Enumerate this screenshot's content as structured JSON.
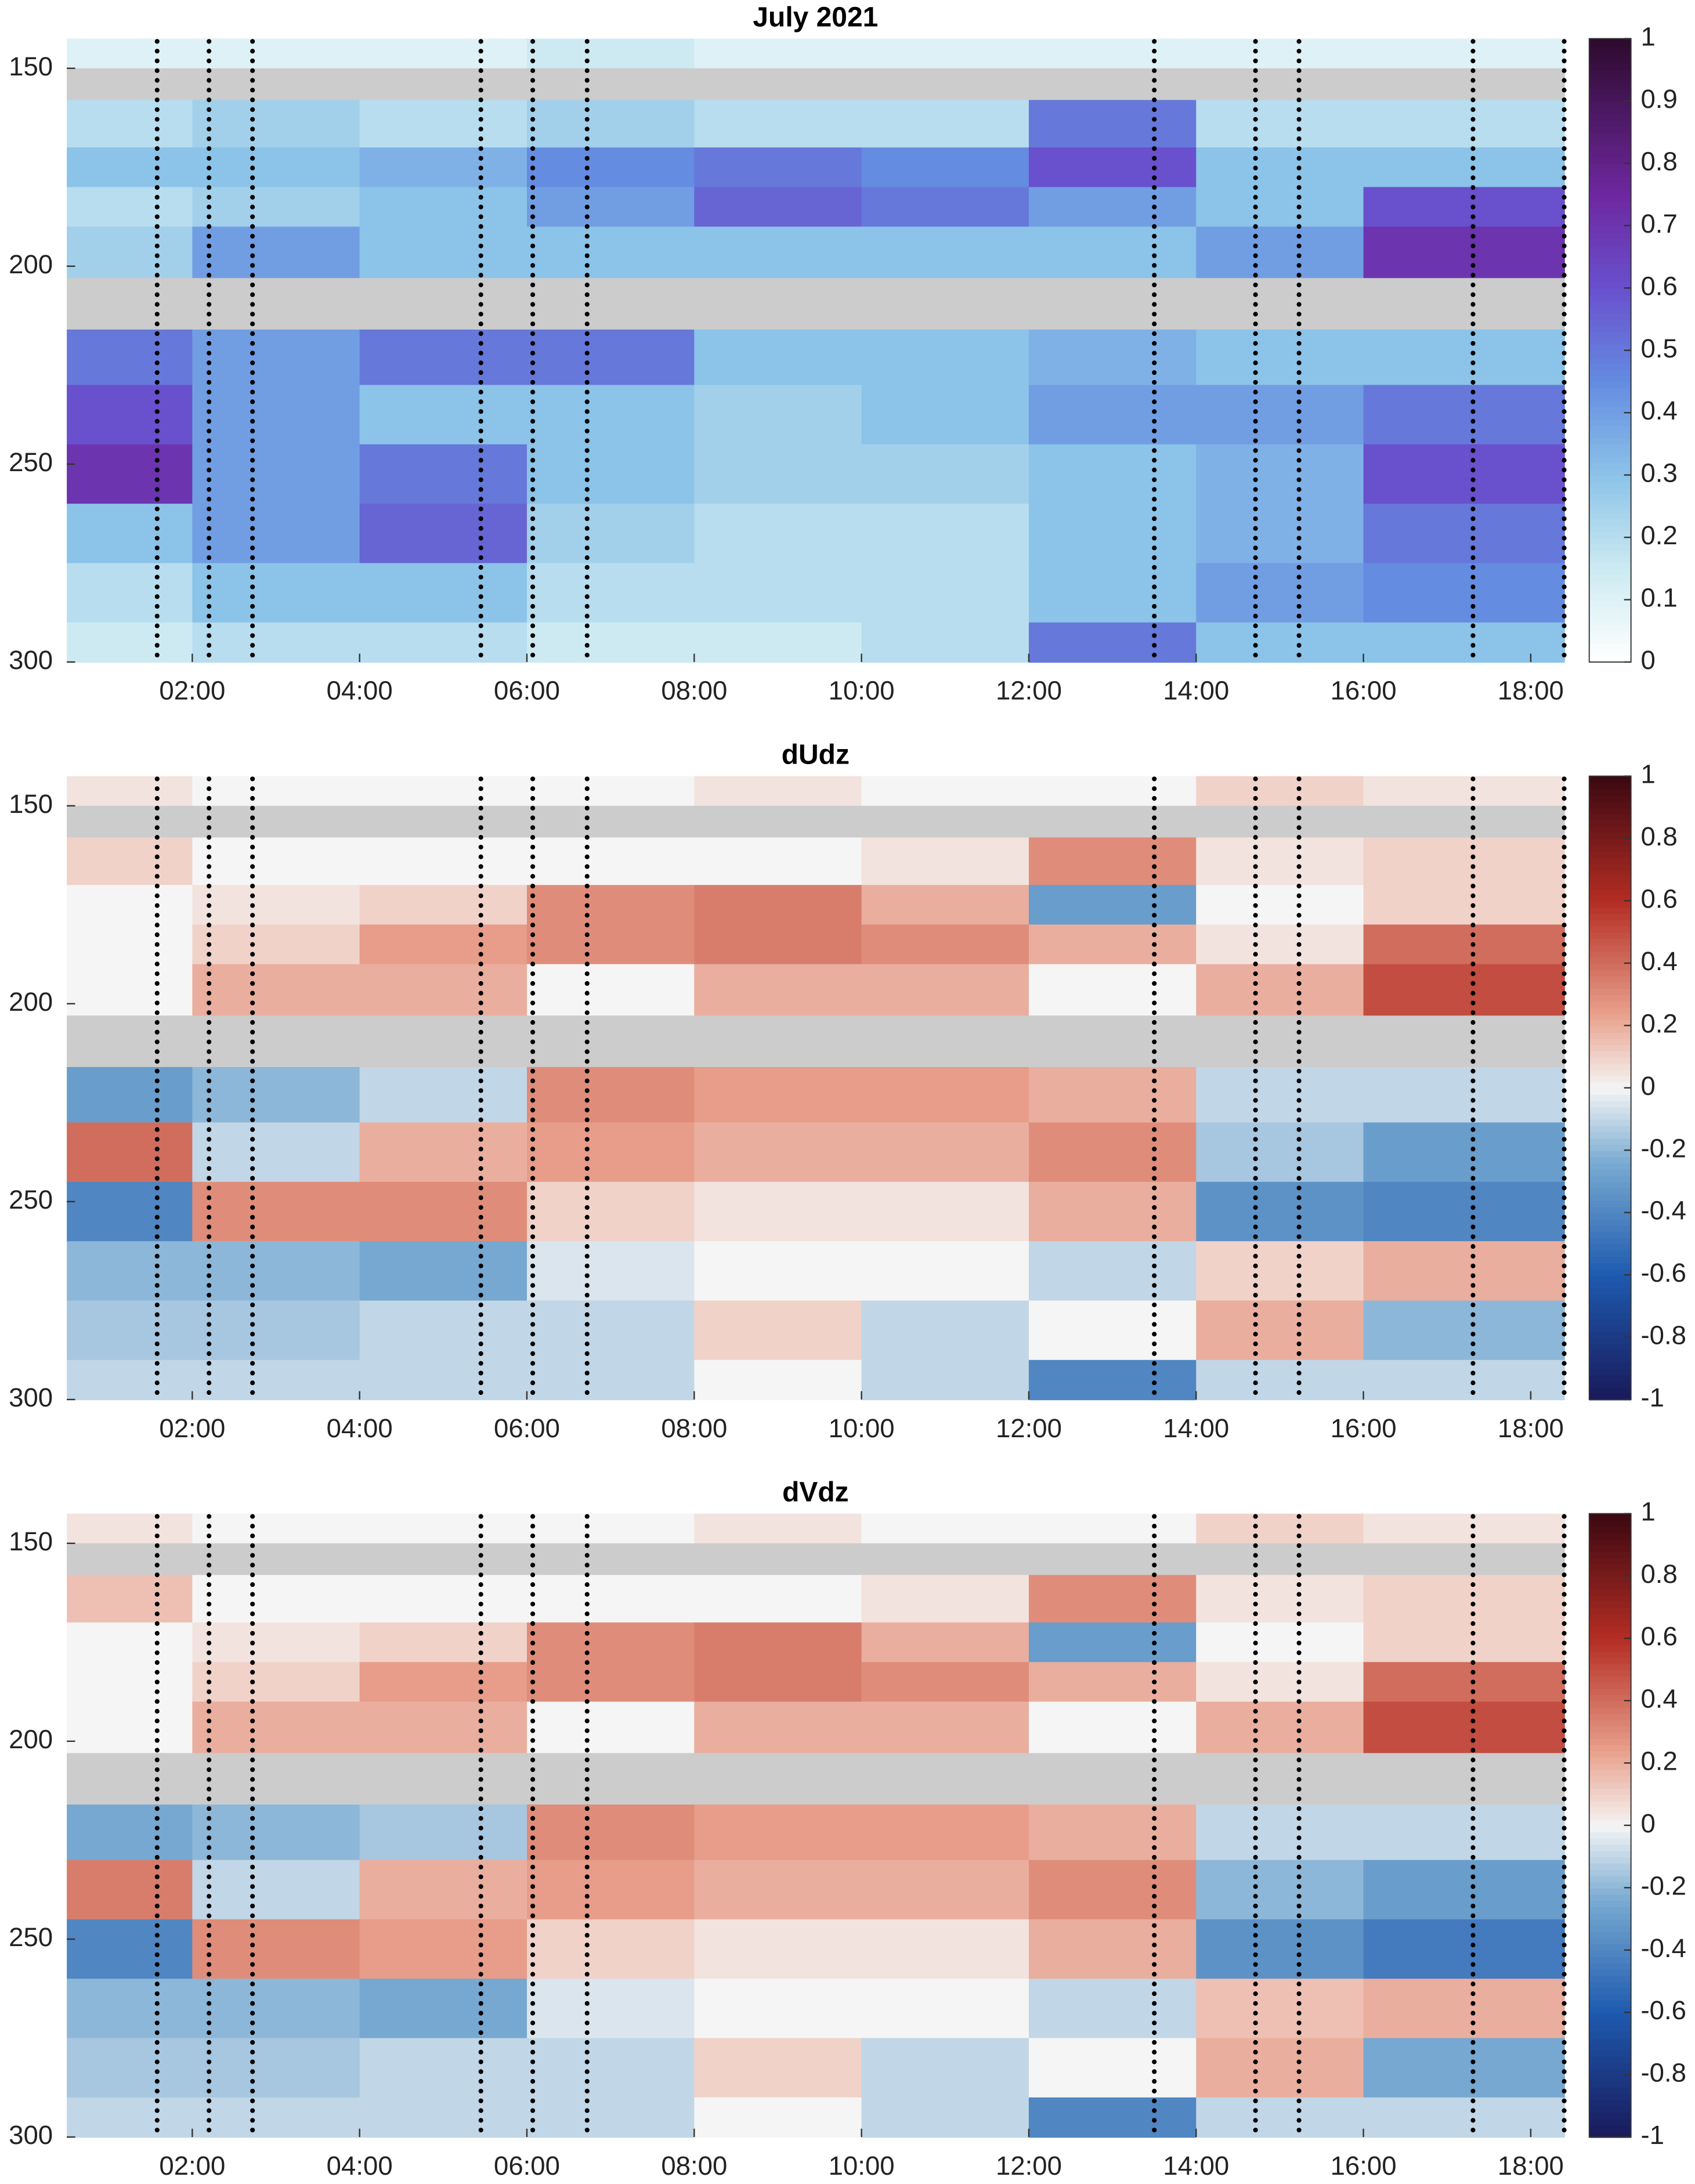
{
  "chart_data": [
    {
      "type": "heatmap",
      "title": "July 2021",
      "colormap": "ice-purple",
      "xlim": [
        0.5,
        18.4
      ],
      "ylim": [
        142.5,
        300
      ],
      "y_reversed": true,
      "xticks": [
        {
          "value": 2,
          "label": "02:00"
        },
        {
          "value": 4,
          "label": "04:00"
        },
        {
          "value": 6,
          "label": "06:00"
        },
        {
          "value": 8,
          "label": "08:00"
        },
        {
          "value": 10,
          "label": "10:00"
        },
        {
          "value": 12,
          "label": "12:00"
        },
        {
          "value": 14,
          "label": "14:00"
        },
        {
          "value": 16,
          "label": "16:00"
        },
        {
          "value": 18,
          "label": "18:00"
        }
      ],
      "yticks": [
        150,
        200,
        250,
        300
      ],
      "x_edges": [
        0.5,
        2,
        4,
        6,
        8,
        10,
        12,
        14,
        16,
        18.4
      ],
      "y_edges": [
        142.5,
        150,
        158,
        170,
        180,
        190,
        203,
        216,
        230,
        245,
        260,
        275,
        290,
        300
      ],
      "z": [
        [
          0.1,
          0.1,
          0.1,
          0.15,
          0.1,
          0.1,
          0.1,
          0.1,
          0.1
        ],
        [
          null,
          null,
          null,
          null,
          null,
          null,
          null,
          null,
          null
        ],
        [
          0.2,
          0.25,
          0.2,
          0.25,
          0.2,
          0.2,
          0.5,
          0.2,
          0.2
        ],
        [
          0.3,
          0.3,
          0.35,
          0.45,
          0.5,
          0.45,
          0.6,
          0.3,
          0.3
        ],
        [
          0.2,
          0.25,
          0.3,
          0.4,
          0.55,
          0.5,
          0.4,
          0.3,
          0.6
        ],
        [
          0.25,
          0.4,
          0.3,
          0.3,
          0.3,
          0.3,
          0.3,
          0.4,
          0.7
        ],
        [
          null,
          null,
          null,
          null,
          null,
          null,
          null,
          null,
          null
        ],
        [
          0.5,
          0.4,
          0.5,
          0.5,
          0.3,
          0.3,
          0.35,
          0.3,
          0.3
        ],
        [
          0.6,
          0.4,
          0.3,
          0.3,
          0.25,
          0.3,
          0.4,
          0.4,
          0.5
        ],
        [
          0.7,
          0.4,
          0.5,
          0.3,
          0.25,
          0.25,
          0.3,
          0.35,
          0.6
        ],
        [
          0.3,
          0.4,
          0.55,
          0.25,
          0.2,
          0.2,
          0.3,
          0.35,
          0.5
        ],
        [
          0.2,
          0.3,
          0.3,
          0.2,
          0.2,
          0.2,
          0.3,
          0.4,
          0.45
        ],
        [
          0.15,
          0.2,
          0.2,
          0.15,
          0.15,
          0.2,
          0.5,
          0.3,
          0.3
        ]
      ],
      "clim": [
        0,
        1
      ],
      "cticks": [
        0,
        0.1,
        0.2,
        0.3,
        0.4,
        0.5,
        0.6,
        0.7,
        0.8,
        0.9,
        1
      ],
      "profile_times": [
        1.58,
        2.2,
        2.72,
        5.45,
        6.07,
        6.72,
        13.5,
        14.71,
        15.23,
        17.31,
        18.4
      ]
    },
    {
      "type": "heatmap",
      "title": "dUdz",
      "colormap": "blue-red",
      "xlim": [
        0.5,
        18.4
      ],
      "ylim": [
        142.5,
        300
      ],
      "y_reversed": true,
      "xticks": [
        {
          "value": 2,
          "label": "02:00"
        },
        {
          "value": 4,
          "label": "04:00"
        },
        {
          "value": 6,
          "label": "06:00"
        },
        {
          "value": 8,
          "label": "08:00"
        },
        {
          "value": 10,
          "label": "10:00"
        },
        {
          "value": 12,
          "label": "12:00"
        },
        {
          "value": 14,
          "label": "14:00"
        },
        {
          "value": 16,
          "label": "16:00"
        },
        {
          "value": 18,
          "label": "18:00"
        }
      ],
      "yticks": [
        150,
        200,
        250,
        300
      ],
      "x_edges": [
        0.5,
        2,
        4,
        6,
        8,
        10,
        12,
        14,
        16,
        18.4
      ],
      "y_edges": [
        142.5,
        150,
        158,
        170,
        180,
        190,
        203,
        216,
        230,
        245,
        260,
        275,
        290,
        300
      ],
      "z": [
        [
          0.05,
          0,
          0,
          0,
          0.05,
          0,
          0,
          0.1,
          0.05
        ],
        [
          null,
          null,
          null,
          null,
          null,
          null,
          null,
          null,
          null
        ],
        [
          0.1,
          0,
          0,
          0,
          0,
          0.05,
          0.3,
          0.05,
          0.1
        ],
        [
          0,
          0.05,
          0.1,
          0.3,
          0.35,
          0.2,
          -0.3,
          0,
          0.1
        ],
        [
          0,
          0.1,
          0.25,
          0.3,
          0.35,
          0.3,
          0.2,
          0.05,
          0.4
        ],
        [
          0,
          0.2,
          0.2,
          0,
          0.2,
          0.2,
          0,
          0.2,
          0.5
        ],
        [
          null,
          null,
          null,
          null,
          null,
          null,
          null,
          null,
          null
        ],
        [
          -0.3,
          -0.2,
          -0.1,
          0.3,
          0.25,
          0.25,
          0.2,
          -0.1,
          -0.1
        ],
        [
          0.4,
          -0.1,
          0.2,
          0.25,
          0.2,
          0.2,
          0.3,
          -0.15,
          -0.3
        ],
        [
          -0.4,
          0.3,
          0.3,
          0.1,
          0.05,
          0.05,
          0.2,
          -0.35,
          -0.4
        ],
        [
          -0.2,
          -0.2,
          -0.25,
          -0.05,
          0,
          0,
          -0.1,
          0.1,
          0.2
        ],
        [
          -0.15,
          -0.15,
          -0.1,
          -0.1,
          0.1,
          -0.1,
          0,
          0.2,
          -0.2
        ],
        [
          -0.1,
          -0.1,
          -0.1,
          -0.1,
          0,
          -0.1,
          -0.4,
          -0.1,
          -0.1
        ]
      ],
      "clim": [
        -1,
        1
      ],
      "cticks": [
        -1,
        -0.8,
        -0.6,
        -0.4,
        -0.2,
        0,
        0.2,
        0.4,
        0.6,
        0.8,
        1
      ],
      "profile_times": [
        1.58,
        2.2,
        2.72,
        5.45,
        6.07,
        6.72,
        13.5,
        14.71,
        15.23,
        17.31,
        18.4
      ]
    },
    {
      "type": "heatmap",
      "title": "dVdz",
      "colormap": "blue-red",
      "xlim": [
        0.5,
        18.4
      ],
      "ylim": [
        142.5,
        300
      ],
      "y_reversed": true,
      "xticks": [
        {
          "value": 2,
          "label": "02:00"
        },
        {
          "value": 4,
          "label": "04:00"
        },
        {
          "value": 6,
          "label": "06:00"
        },
        {
          "value": 8,
          "label": "08:00"
        },
        {
          "value": 10,
          "label": "10:00"
        },
        {
          "value": 12,
          "label": "12:00"
        },
        {
          "value": 14,
          "label": "14:00"
        },
        {
          "value": 16,
          "label": "16:00"
        },
        {
          "value": 18,
          "label": "18:00"
        }
      ],
      "yticks": [
        150,
        200,
        250,
        300
      ],
      "x_edges": [
        0.5,
        2,
        4,
        6,
        8,
        10,
        12,
        14,
        16,
        18.4
      ],
      "y_edges": [
        142.5,
        150,
        158,
        170,
        180,
        190,
        203,
        216,
        230,
        245,
        260,
        275,
        290,
        300
      ],
      "z": [
        [
          0.05,
          0,
          0,
          0,
          0.05,
          0,
          0,
          0.1,
          0.05
        ],
        [
          null,
          null,
          null,
          null,
          null,
          null,
          null,
          null,
          null
        ],
        [
          0.15,
          0,
          0,
          0,
          0,
          0.05,
          0.3,
          0.05,
          0.1
        ],
        [
          0,
          0.05,
          0.1,
          0.3,
          0.35,
          0.2,
          -0.3,
          0,
          0.1
        ],
        [
          0,
          0.1,
          0.25,
          0.3,
          0.35,
          0.3,
          0.2,
          0.05,
          0.4
        ],
        [
          0,
          0.2,
          0.2,
          0,
          0.2,
          0.2,
          0,
          0.2,
          0.5
        ],
        [
          null,
          null,
          null,
          null,
          null,
          null,
          null,
          null,
          null
        ],
        [
          -0.25,
          -0.2,
          -0.15,
          0.3,
          0.25,
          0.25,
          0.2,
          -0.1,
          -0.1
        ],
        [
          0.35,
          -0.1,
          0.2,
          0.25,
          0.2,
          0.2,
          0.3,
          -0.2,
          -0.3
        ],
        [
          -0.4,
          0.3,
          0.25,
          0.1,
          0.05,
          0.05,
          0.2,
          -0.35,
          -0.45
        ],
        [
          -0.2,
          -0.2,
          -0.25,
          -0.05,
          0,
          0,
          -0.1,
          0.15,
          0.2
        ],
        [
          -0.15,
          -0.15,
          -0.1,
          -0.1,
          0.1,
          -0.1,
          0,
          0.2,
          -0.25
        ],
        [
          -0.1,
          -0.1,
          -0.1,
          -0.1,
          0,
          -0.1,
          -0.4,
          -0.1,
          -0.1
        ]
      ],
      "clim": [
        -1,
        1
      ],
      "cticks": [
        -1,
        -0.8,
        -0.6,
        -0.4,
        -0.2,
        0,
        0.2,
        0.4,
        0.6,
        0.8,
        1
      ],
      "profile_times": [
        1.58,
        2.2,
        2.72,
        5.45,
        6.07,
        6.72,
        13.5,
        14.71,
        15.23,
        17.31,
        18.4
      ]
    }
  ]
}
